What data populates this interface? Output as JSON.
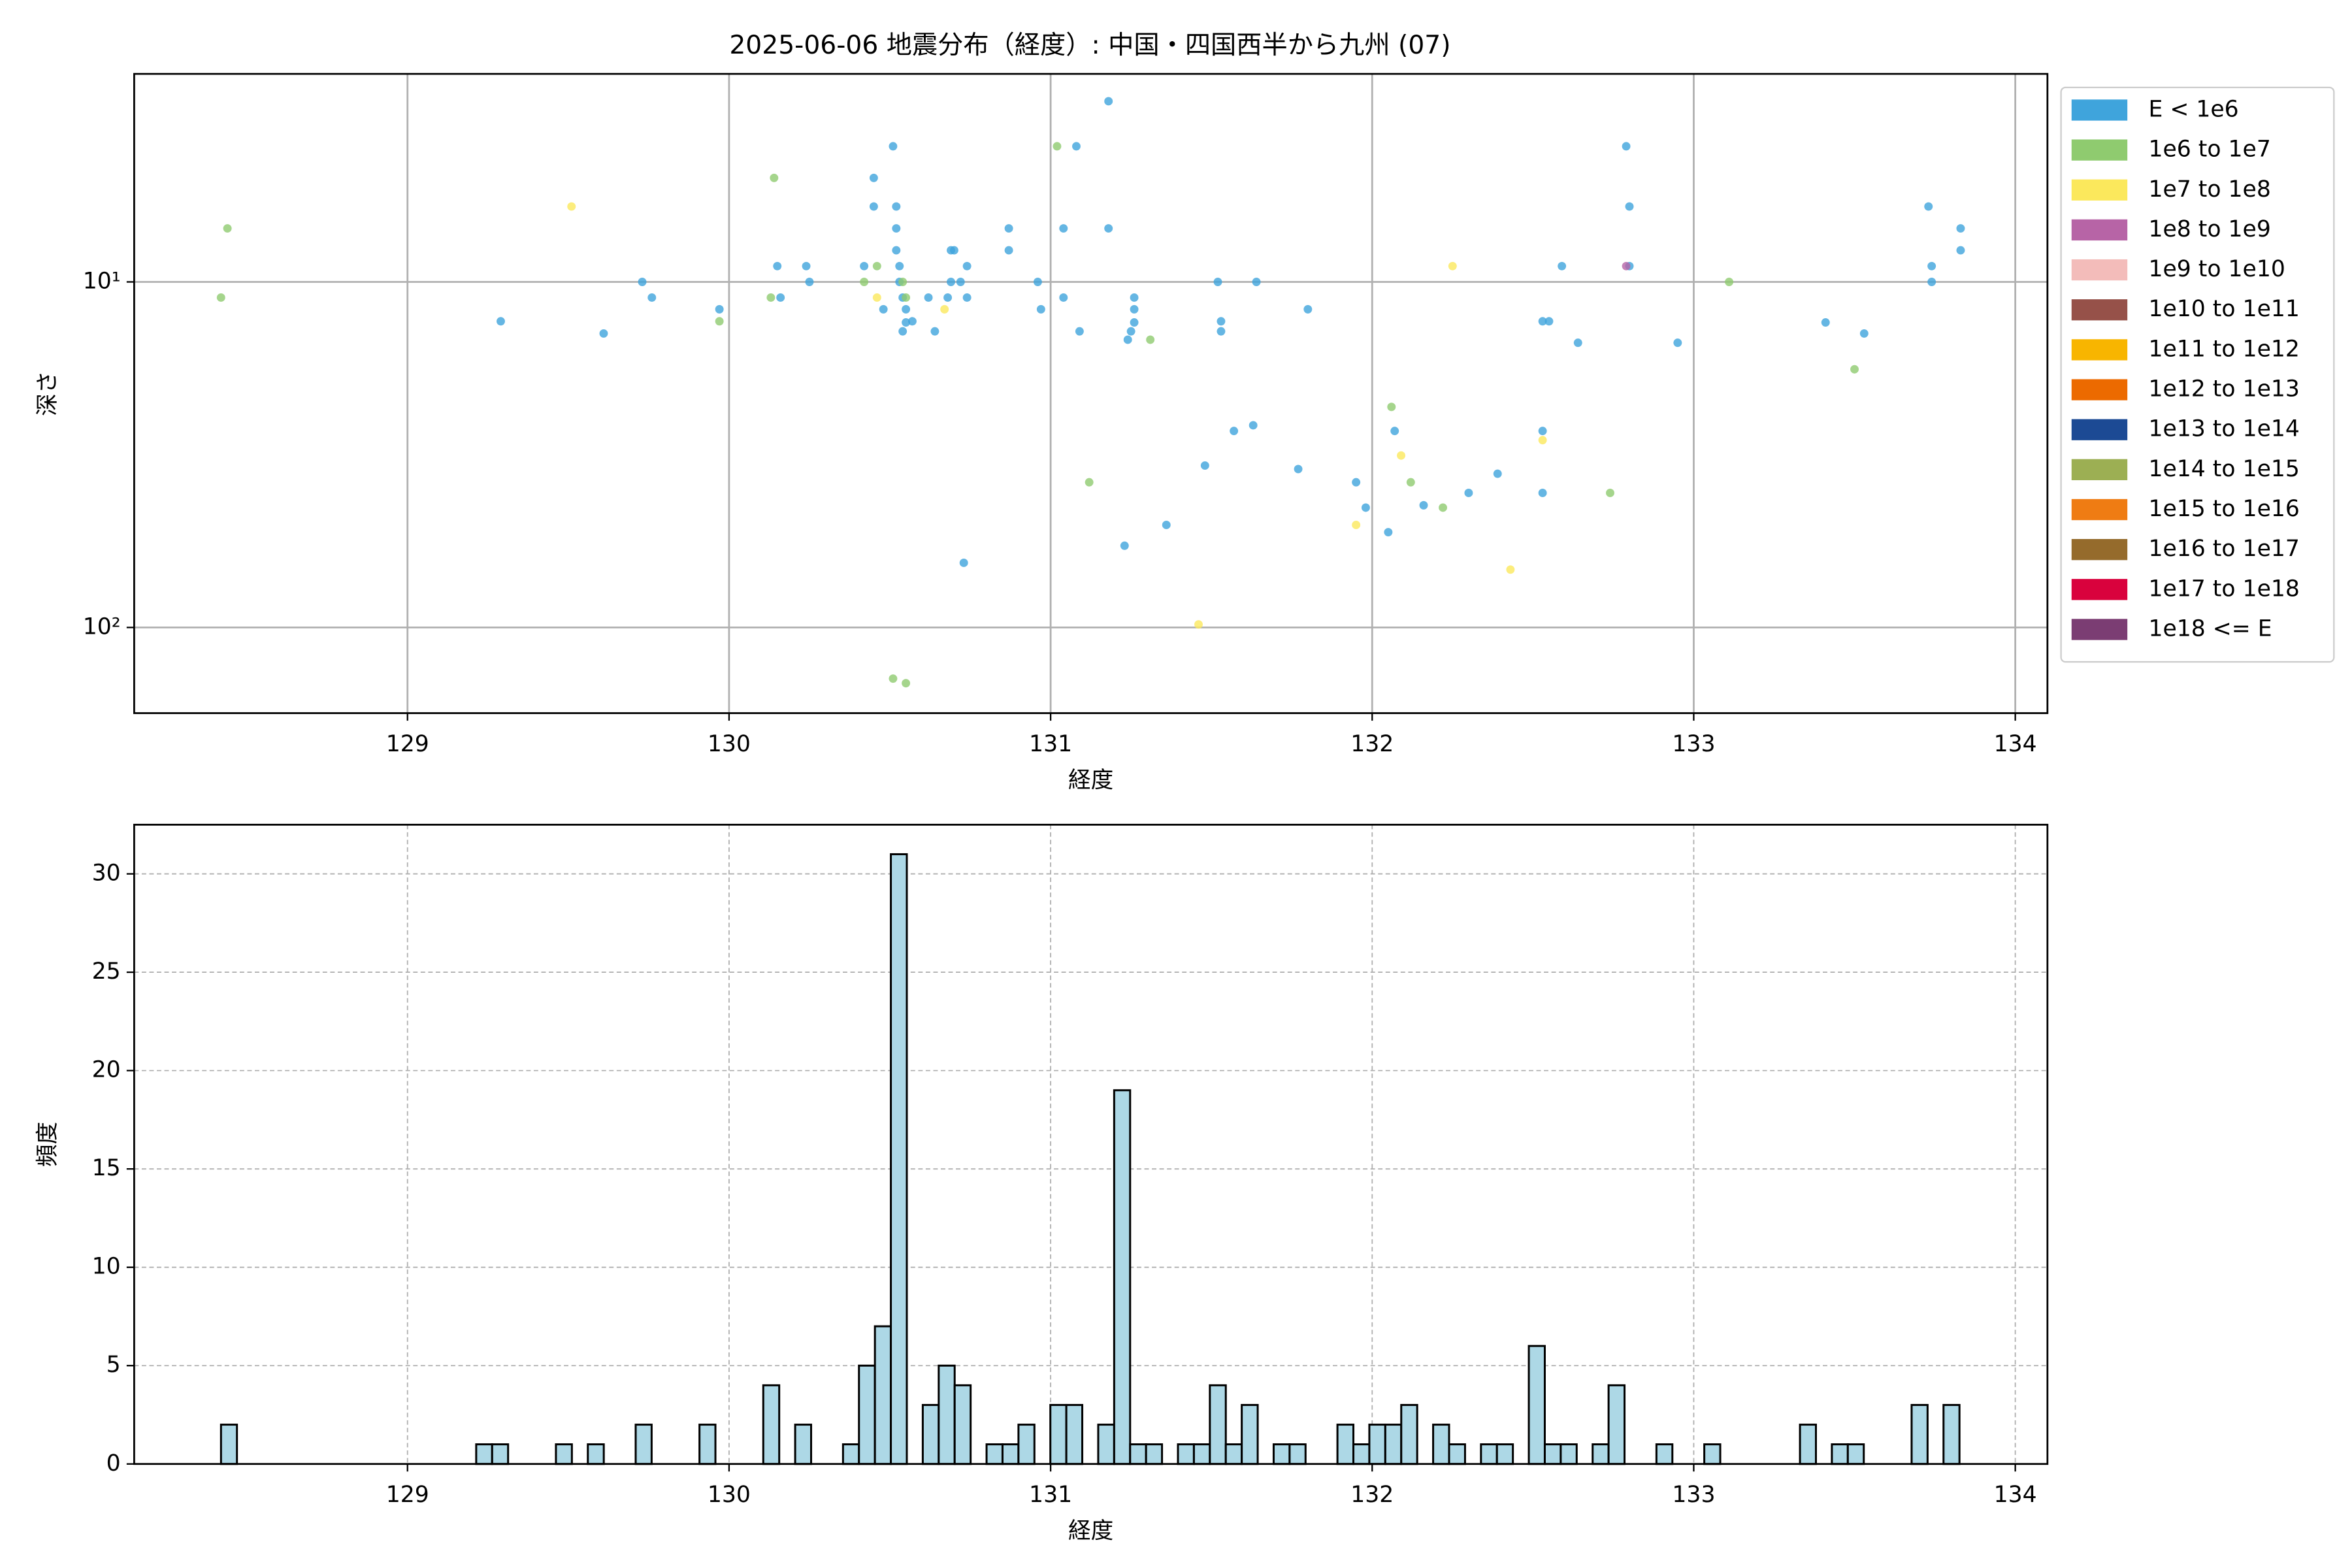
{
  "chart_data": [
    {
      "type": "scatter",
      "title": "2025-06-06 地震分布（経度）: 中国・四国西半から九州 (07)",
      "x_label": "経度",
      "y_label": "深さ",
      "xlim": [
        128.15,
        134.1
      ],
      "ylim": [
        2.5,
        177
      ],
      "y_log": true,
      "y_inverted": true,
      "xticks": [
        129,
        130,
        131,
        132,
        133,
        134
      ],
      "yticks": [
        {
          "value": 10,
          "label": "10¹"
        },
        {
          "value": 100,
          "label": "10²"
        }
      ],
      "grid": true,
      "legend": "right",
      "series": [
        {
          "name": "E < 1e6",
          "color": "#3fa4dc",
          "x": [
            129.29,
            129.61,
            129.73,
            129.76,
            129.97,
            130.15,
            130.16,
            130.24,
            130.25,
            130.42,
            130.45,
            130.45,
            130.48,
            130.51,
            130.52,
            130.52,
            130.52,
            130.53,
            130.53,
            130.54,
            130.54,
            130.55,
            130.55,
            130.57,
            130.62,
            130.64,
            130.68,
            130.69,
            130.7,
            130.69,
            130.72,
            130.74,
            130.74,
            130.73,
            130.87,
            130.87,
            130.96,
            130.97,
            131.04,
            131.04,
            131.08,
            131.09,
            131.18,
            131.18,
            131.24,
            131.26,
            131.26,
            131.26,
            131.25,
            131.23,
            131.36,
            131.48,
            131.52,
            131.53,
            131.53,
            131.57,
            131.63,
            131.64,
            131.77,
            131.8,
            131.95,
            131.98,
            132.05,
            132.07,
            132.16,
            132.3,
            132.39,
            132.53,
            132.53,
            132.55,
            132.53,
            132.59,
            132.64,
            132.79,
            132.8,
            132.8,
            132.95,
            133.41,
            133.53,
            133.73,
            133.74,
            133.74,
            133.83,
            133.83
          ],
          "values": [
            13,
            14.1,
            10,
            11.1,
            12,
            9,
            11.1,
            9,
            10,
            9,
            5,
            6.05,
            12,
            4.05,
            6.05,
            7,
            8.1,
            9,
            10,
            11.1,
            13.9,
            12,
            13.1,
            13,
            11.1,
            13.9,
            11.1,
            8.1,
            8.1,
            10,
            10,
            9,
            11.1,
            65,
            7,
            8.1,
            10,
            12,
            7,
            11.1,
            4.05,
            13.9,
            3,
            7,
            14.7,
            11.1,
            12,
            13.1,
            13.9,
            58,
            50.5,
            34,
            10,
            13,
            13.9,
            27,
            26,
            10,
            34.8,
            12,
            38,
            45,
            53,
            27,
            44.3,
            40.8,
            35.9,
            27,
            13,
            13,
            40.8,
            9,
            15,
            4.05,
            6.05,
            9,
            15,
            13.1,
            14.1,
            6.05,
            9,
            10,
            7,
            8.1
          ]
        },
        {
          "name": "1e6 to 1e7",
          "color": "#8fcb6f",
          "x": [
            128.42,
            128.44,
            129.97,
            130.14,
            130.13,
            130.42,
            130.46,
            130.54,
            130.55,
            130.51,
            130.55,
            131.02,
            131.12,
            131.31,
            132.06,
            132.12,
            132.22,
            132.74,
            133.11,
            133.5
          ],
          "values": [
            11.1,
            7,
            13,
            5,
            11.1,
            10,
            9,
            10,
            11.1,
            140.6,
            145,
            4.05,
            38,
            14.7,
            23,
            38,
            45,
            40.8,
            10,
            17.9
          ]
        },
        {
          "name": "1e7 to 1e8",
          "color": "#fbe85c",
          "x": [
            129.51,
            130.46,
            130.67,
            132.25,
            132.09,
            131.95,
            132.43,
            131.46,
            132.53
          ],
          "values": [
            6.05,
            11.1,
            12,
            9,
            31.8,
            50.5,
            68,
            98,
            28.7
          ]
        },
        {
          "name": "1e8 to 1e9",
          "color": "#b764a6",
          "x": [
            132.79
          ],
          "values": [
            9
          ]
        },
        {
          "name": "1e9 to 1e10",
          "color": "#f3bcba",
          "x": [],
          "values": []
        },
        {
          "name": "1e10 to 1e11",
          "color": "#965149",
          "x": [],
          "values": []
        },
        {
          "name": "1e11 to 1e12",
          "color": "#f8b500",
          "x": [],
          "values": []
        },
        {
          "name": "1e12 to 1e13",
          "color": "#ec6a00",
          "x": [],
          "values": []
        },
        {
          "name": "1e13 to 1e14",
          "color": "#1c4a94",
          "x": [],
          "values": []
        },
        {
          "name": "1e14 to 1e15",
          "color": "#9caf53",
          "x": [],
          "values": []
        },
        {
          "name": "1e15 to 1e16",
          "color": "#ef7c13",
          "x": [],
          "values": []
        },
        {
          "name": "1e16 to 1e17",
          "color": "#956b2c",
          "x": [],
          "values": []
        },
        {
          "name": "1e17 to 1e18",
          "color": "#d9023d",
          "x": [],
          "values": []
        },
        {
          "name": "1e18 <= E",
          "color": "#7b3d73",
          "x": [],
          "values": []
        }
      ]
    },
    {
      "type": "histogram",
      "x_label": "経度",
      "y_label": "頻度",
      "color": "#add8e6",
      "edgecolor": "#000000",
      "xlim": [
        128.15,
        134.1
      ],
      "ylim": [
        0,
        32.5
      ],
      "xticks": [
        129,
        130,
        131,
        132,
        133,
        134
      ],
      "yticks": [
        0,
        5,
        10,
        15,
        20,
        25,
        30
      ],
      "grid": true,
      "grid_style": "dashed",
      "bins": [
        128.42,
        128.4696,
        128.5192,
        128.5688,
        128.6184,
        128.668,
        128.7176,
        128.7672,
        128.8168,
        128.8664,
        128.916,
        128.9656,
        129.0152,
        129.0648,
        129.1144,
        129.164,
        129.2136,
        129.2632,
        129.3128,
        129.3624,
        129.412,
        129.4616,
        129.5112,
        129.5608,
        129.6104,
        129.66,
        129.7096,
        129.7592,
        129.8088,
        129.8584,
        129.908,
        129.9576,
        130.0072,
        130.0568,
        130.1064,
        130.156,
        130.2056,
        130.2552,
        130.3048,
        130.3544,
        130.404,
        130.4536,
        130.5032,
        130.5528,
        130.6024,
        130.652,
        130.7016,
        130.7512,
        130.8008,
        130.8504,
        130.9,
        130.9496,
        130.9992,
        131.0488,
        131.0984,
        131.148,
        131.1976,
        131.2472,
        131.2968,
        131.3464,
        131.396,
        131.4456,
        131.4952,
        131.5448,
        131.5944,
        131.644,
        131.6936,
        131.7432,
        131.7928,
        131.8424,
        131.892,
        131.9416,
        131.9912,
        132.0408,
        132.0904,
        132.14,
        132.1896,
        132.2392,
        132.2888,
        132.3384,
        132.388,
        132.4376,
        132.4872,
        132.5368,
        132.5864,
        132.636,
        132.6856,
        132.7352,
        132.7848,
        132.8344,
        132.884,
        132.9336,
        132.9832,
        133.0328,
        133.0824,
        133.132,
        133.1816,
        133.2312,
        133.2808,
        133.3304,
        133.38,
        133.4296,
        133.4792,
        133.5288,
        133.5784,
        133.628,
        133.6776,
        133.7272,
        133.7768,
        133.8264
      ],
      "values": [
        2,
        0,
        0,
        0,
        0,
        0,
        0,
        0,
        0,
        0,
        0,
        0,
        0,
        0,
        0,
        0,
        1,
        1,
        0,
        0,
        0,
        1,
        0,
        1,
        0,
        0,
        2,
        0,
        0,
        0,
        2,
        0,
        0,
        0,
        4,
        0,
        2,
        0,
        0,
        1,
        5,
        7,
        31,
        0,
        3,
        5,
        4,
        0,
        1,
        1,
        2,
        0,
        3,
        3,
        0,
        2,
        19,
        1,
        1,
        0,
        1,
        1,
        4,
        1,
        3,
        0,
        1,
        1,
        0,
        0,
        2,
        1,
        2,
        2,
        3,
        0,
        2,
        1,
        0,
        1,
        1,
        0,
        6,
        1,
        1,
        0,
        1,
        4,
        0,
        0,
        1,
        0,
        0,
        1,
        0,
        0,
        0,
        0,
        0,
        2,
        0,
        1,
        1,
        0,
        0,
        0,
        3,
        0,
        3
      ]
    }
  ]
}
